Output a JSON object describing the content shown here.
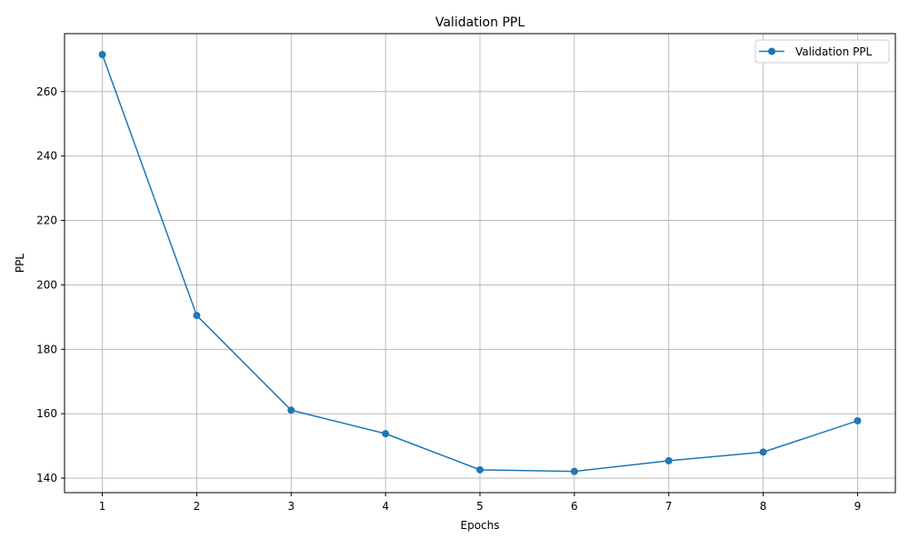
{
  "chart_data": {
    "type": "line",
    "title": "Validation PPL",
    "xlabel": "Epochs",
    "ylabel": "PPL",
    "x": [
      1,
      2,
      3,
      4,
      5,
      6,
      7,
      8,
      9
    ],
    "xlim": [
      0.6,
      9.4
    ],
    "ylim": [
      135.5,
      278
    ],
    "x_ticks": [
      1,
      2,
      3,
      4,
      5,
      6,
      7,
      8,
      9
    ],
    "y_ticks": [
      140,
      160,
      180,
      200,
      220,
      240,
      260
    ],
    "grid": true,
    "legend_position": "top-right",
    "series": [
      {
        "name": "Validation PPL",
        "color": "#1f77b4",
        "marker": "circle",
        "values": [
          271.5,
          190.5,
          161.1,
          153.8,
          142.6,
          142.1,
          145.4,
          148.1,
          157.8
        ]
      }
    ]
  }
}
